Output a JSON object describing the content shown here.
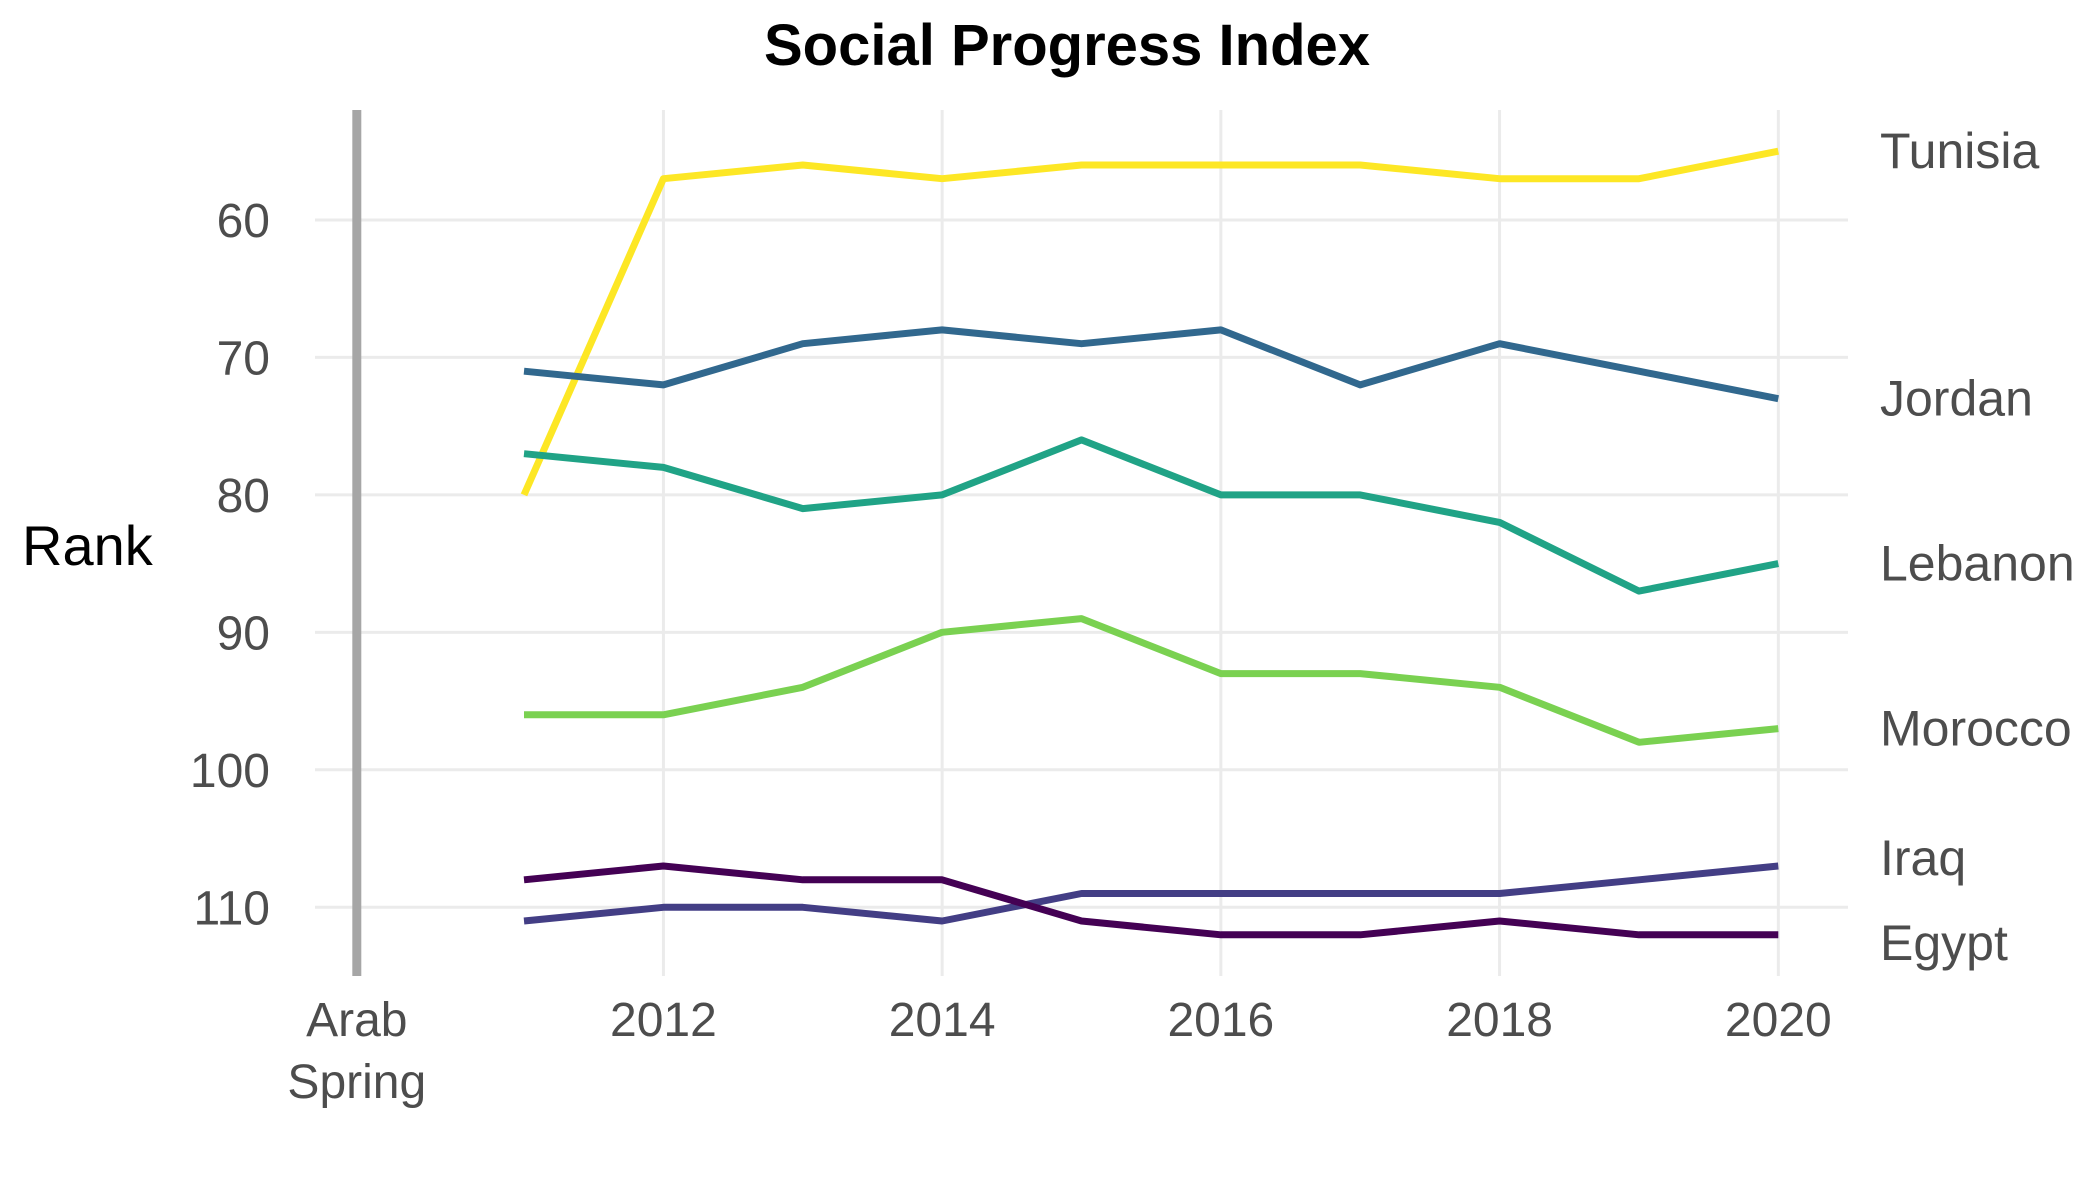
{
  "chart_data": {
    "type": "line",
    "title": "Social Progress Index",
    "xlabel": "",
    "ylabel": "Rank",
    "x": [
      2011,
      2012,
      2013,
      2014,
      2015,
      2016,
      2017,
      2018,
      2019,
      2020
    ],
    "xlim": [
      2009.5,
      2020.5
    ],
    "ylim": [
      52,
      115
    ],
    "y_reversed": true,
    "x_ticks": [
      2012,
      2014,
      2016,
      2018,
      2020
    ],
    "y_ticks": [
      60,
      70,
      80,
      90,
      100,
      110
    ],
    "grid": true,
    "event_marker": {
      "x": 2009.8,
      "label_lines": [
        "Arab",
        "Spring"
      ],
      "color": "#a6a6a6"
    },
    "series": [
      {
        "name": "Tunisia",
        "color": "#fde725",
        "values": [
          80,
          57,
          56,
          57,
          56,
          56,
          56,
          57,
          57,
          55
        ]
      },
      {
        "name": "Jordan",
        "color": "#31688e",
        "values": [
          71,
          72,
          69,
          68,
          69,
          68,
          72,
          69,
          71,
          73
        ]
      },
      {
        "name": "Lebanon",
        "color": "#20a386",
        "values": [
          77,
          78,
          81,
          80,
          76,
          80,
          80,
          82,
          87,
          85
        ]
      },
      {
        "name": "Morocco",
        "color": "#7ad151",
        "values": [
          96,
          96,
          94,
          90,
          89,
          93,
          93,
          94,
          98,
          97
        ]
      },
      {
        "name": "Iraq",
        "color": "#433e85",
        "values": [
          111,
          110,
          110,
          111,
          109,
          109,
          109,
          109,
          108,
          107
        ]
      },
      {
        "name": "Egypt",
        "color": "#440154",
        "values": [
          108,
          107,
          108,
          108,
          111,
          112,
          112,
          111,
          112,
          112
        ]
      }
    ],
    "legend": "direct labels at line ends (right)"
  }
}
